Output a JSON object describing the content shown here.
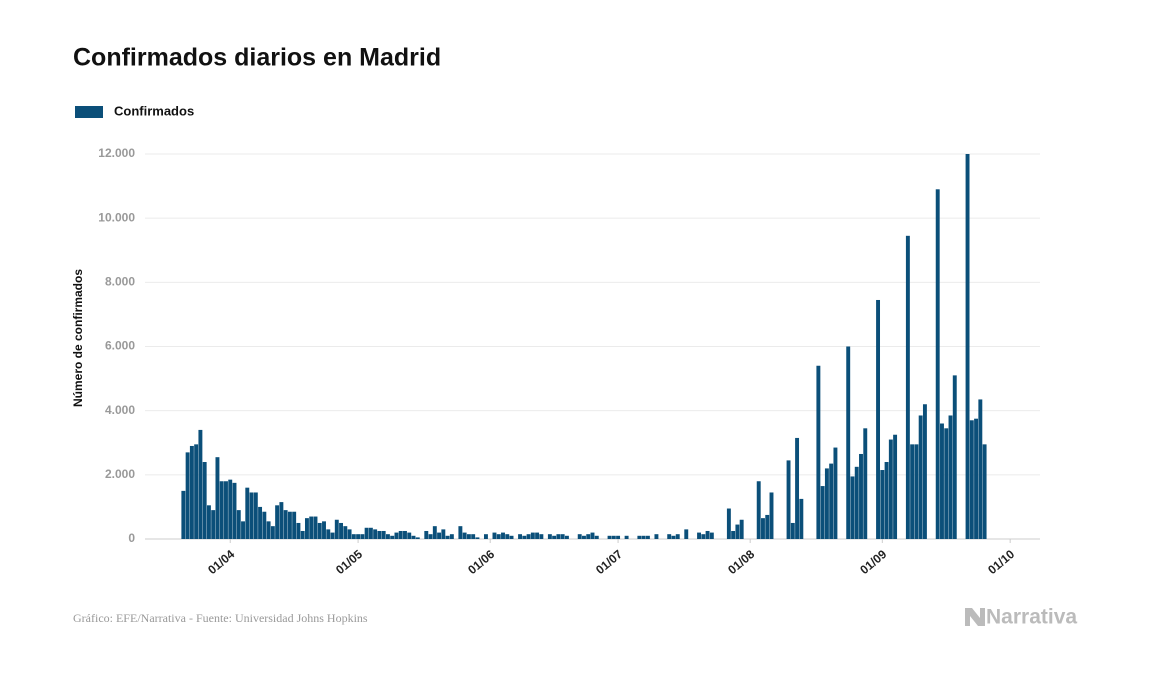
{
  "chart_data": {
    "type": "bar",
    "title": "Confirmados diarios en Madrid",
    "y_label": "Número de confirmados",
    "source": "Gráfico: EFE/Narrativa - Fuente: Universidad Johns Hopkins",
    "logo": "Narrativa",
    "legend": "top-left",
    "grid": true,
    "ylim": [
      0,
      12000
    ],
    "yticks": [
      0,
      {
        "value": 2000,
        "label": "2.000"
      },
      {
        "value": 4000,
        "label": "4.000"
      },
      {
        "value": 6000,
        "label": "6.000"
      },
      {
        "value": 8000,
        "label": "8.000"
      },
      {
        "value": 10000,
        "label": "10.000"
      },
      {
        "value": 12000,
        "label": "12.000"
      }
    ],
    "xlim": [
      "12/03",
      "08/10"
    ],
    "xticks": [
      "01/04",
      "01/05",
      "01/06",
      "01/07",
      "01/08",
      "01/09",
      "01/10"
    ],
    "x": [
      "21/03",
      "22/03",
      "23/03",
      "24/03",
      "25/03",
      "26/03",
      "27/03",
      "28/03",
      "29/03",
      "30/03",
      "31/03",
      "01/04",
      "02/04",
      "03/04",
      "04/04",
      "05/04",
      "06/04",
      "07/04",
      "08/04",
      "09/04",
      "10/04",
      "11/04",
      "12/04",
      "13/04",
      "14/04",
      "15/04",
      "16/04",
      "17/04",
      "18/04",
      "19/04",
      "20/04",
      "21/04",
      "22/04",
      "23/04",
      "24/04",
      "25/04",
      "26/04",
      "27/04",
      "28/04",
      "29/04",
      "30/04",
      "01/05",
      "02/05",
      "03/05",
      "04/05",
      "05/05",
      "06/05",
      "07/05",
      "08/05",
      "09/05",
      "10/05",
      "11/05",
      "12/05",
      "13/05",
      "14/05",
      "15/05",
      "16/05",
      "17/05",
      "18/05",
      "19/05",
      "20/05",
      "21/05",
      "22/05",
      "23/05",
      "24/05",
      "25/05",
      "26/05",
      "27/05",
      "28/05",
      "29/05",
      "30/05",
      "31/05",
      "01/06",
      "02/06",
      "03/06",
      "04/06",
      "05/06",
      "06/06",
      "07/06",
      "08/06",
      "09/06",
      "10/06",
      "11/06",
      "12/06",
      "13/06",
      "14/06",
      "15/06",
      "16/06",
      "17/06",
      "18/06",
      "19/06",
      "20/06",
      "21/06",
      "22/06",
      "23/06",
      "24/06",
      "25/06",
      "26/06",
      "27/06",
      "28/06",
      "29/06",
      "30/06",
      "01/07",
      "02/07",
      "03/07",
      "04/07",
      "05/07",
      "06/07",
      "07/07",
      "08/07",
      "09/07",
      "10/07",
      "11/07",
      "12/07",
      "13/07",
      "14/07",
      "15/07",
      "16/07",
      "17/07",
      "18/07",
      "19/07",
      "20/07",
      "21/07",
      "22/07",
      "23/07",
      "24/07",
      "25/07",
      "26/07",
      "27/07",
      "28/07",
      "29/07",
      "30/07",
      "31/07",
      "01/08",
      "02/08",
      "03/08",
      "04/08",
      "05/08",
      "06/08",
      "07/08",
      "08/08",
      "09/08",
      "10/08",
      "11/08",
      "12/08",
      "13/08",
      "14/08",
      "15/08",
      "16/08",
      "17/08",
      "18/08",
      "19/08",
      "20/08",
      "21/08",
      "22/08",
      "23/08",
      "24/08",
      "25/08",
      "26/08",
      "27/08",
      "28/08",
      "29/08",
      "30/08",
      "31/08",
      "01/09",
      "02/09",
      "03/09",
      "04/09",
      "05/09",
      "06/09",
      "07/09",
      "08/09",
      "09/09",
      "10/09",
      "11/09",
      "12/09",
      "13/09",
      "14/09",
      "15/09",
      "16/09",
      "17/09",
      "18/09",
      "19/09",
      "20/09",
      "21/09",
      "22/09",
      "23/09",
      "24/09",
      "25/09"
    ],
    "series": [
      {
        "name": "Confirmados",
        "color": "#0b4f79",
        "values": [
          1500,
          2700,
          2900,
          2950,
          3400,
          2400,
          1050,
          900,
          2550,
          1800,
          1800,
          1850,
          1750,
          900,
          550,
          1600,
          1450,
          1450,
          1000,
          850,
          550,
          400,
          1050,
          1150,
          900,
          850,
          850,
          500,
          250,
          650,
          700,
          700,
          500,
          550,
          300,
          200,
          600,
          500,
          400,
          300,
          150,
          150,
          150,
          350,
          350,
          300,
          250,
          250,
          150,
          100,
          200,
          250,
          250,
          200,
          100,
          50,
          0,
          250,
          150,
          400,
          200,
          300,
          100,
          150,
          0,
          400,
          200,
          150,
          150,
          50,
          0,
          150,
          0,
          200,
          150,
          200,
          150,
          100,
          0,
          150,
          100,
          150,
          200,
          200,
          150,
          0,
          150,
          100,
          150,
          150,
          100,
          0,
          0,
          150,
          100,
          150,
          200,
          100,
          0,
          0,
          100,
          100,
          100,
          0,
          100,
          0,
          0,
          100,
          100,
          100,
          0,
          150,
          0,
          0,
          150,
          100,
          150,
          0,
          300,
          0,
          0,
          200,
          150,
          250,
          200,
          0,
          0,
          0,
          950,
          250,
          450,
          600,
          0,
          0,
          0,
          1800,
          650,
          750,
          1450,
          0,
          0,
          0,
          2450,
          500,
          3150,
          1250,
          0,
          0,
          0,
          5400,
          1650,
          2200,
          2350,
          2850,
          0,
          0,
          6000,
          1950,
          2250,
          2650,
          3450,
          0,
          0,
          7450,
          2150,
          2400,
          3100,
          3250,
          0,
          0,
          9450,
          2950,
          2950,
          3850,
          4200,
          0,
          0,
          10900,
          3600,
          3450,
          3850,
          5100,
          0,
          0,
          12000,
          3700,
          3750,
          4350,
          2950
        ]
      }
    ]
  }
}
